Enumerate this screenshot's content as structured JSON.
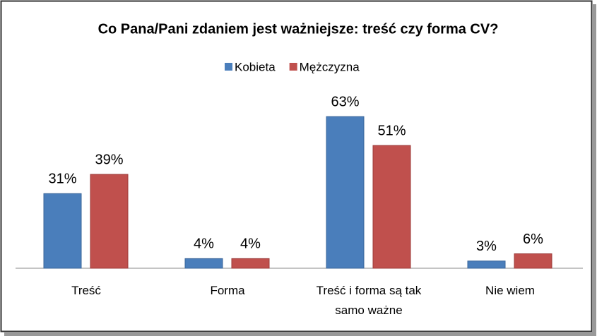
{
  "chart_data": {
    "type": "bar",
    "title": "Co Pana/Pani zdaniem jest ważniejsze: treść czy forma CV?",
    "categories": [
      "Treść",
      "Forma",
      "Treść i forma są tak samo ważne",
      "Nie wiem"
    ],
    "series": [
      {
        "name": "Kobieta",
        "color": "#4a7ebb",
        "values": [
          31,
          4,
          63,
          3
        ],
        "value_labels": [
          "31%",
          "4%",
          "63%",
          "3%"
        ]
      },
      {
        "name": "Mężczyzna",
        "color": "#c0504d",
        "values": [
          39,
          4,
          51,
          6
        ],
        "value_labels": [
          "39%",
          "4%",
          "51%",
          "6%"
        ]
      }
    ],
    "legend": "top"
  }
}
